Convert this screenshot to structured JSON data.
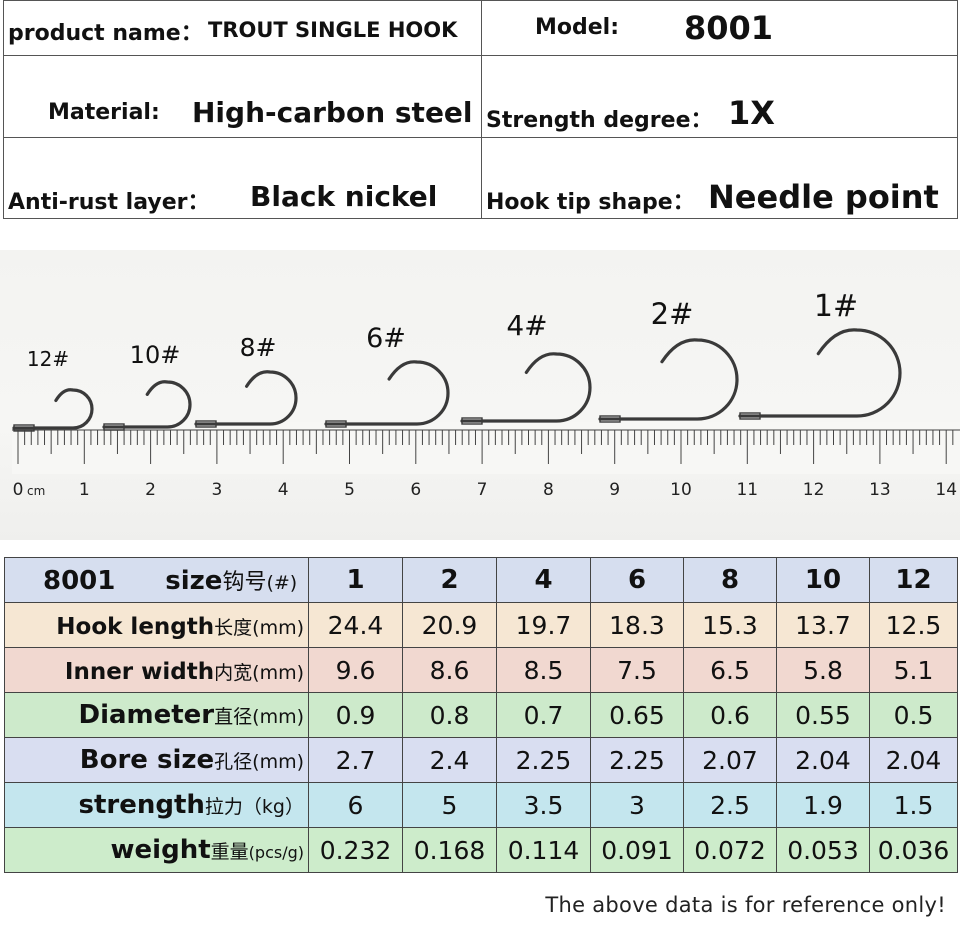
{
  "info": {
    "product_label": "product name：",
    "product_value": "TROUT SINGLE HOOK",
    "model_label": "Model:",
    "model_value": "8001",
    "material_label": "Material:",
    "material_value": "High-carbon steel",
    "strength_label": "Strength degree：",
    "strength_value": "1X",
    "rust_label": "Anti-rust layer：",
    "rust_value": "Black nickel",
    "tip_label": "Hook tip shape：",
    "tip_value": "Needle point"
  },
  "photo": {
    "hook_labels": [
      "12#",
      "10#",
      "8#",
      "6#",
      "4#",
      "2#",
      "1#"
    ],
    "ruler_numbers": [
      "0",
      "1",
      "2",
      "3",
      "4",
      "5",
      "6",
      "7",
      "8",
      "9",
      "10",
      "11",
      "12",
      "13",
      "14"
    ],
    "ruler_unit": "cm"
  },
  "specs": {
    "header": {
      "model": "8001",
      "label_en": "size",
      "label_cn": "钩号",
      "unit": "(#)",
      "sizes": [
        "1",
        "2",
        "4",
        "6",
        "8",
        "10",
        "12"
      ]
    },
    "rows": [
      {
        "en": "Hook length",
        "cn": "长度",
        "unit": "(mm)",
        "values": [
          "24.4",
          "20.9",
          "19.7",
          "18.3",
          "15.3",
          "13.7",
          "12.5"
        ]
      },
      {
        "en": "Inner width",
        "cn": "内宽",
        "unit": "(mm)",
        "values": [
          "9.6",
          "8.6",
          "8.5",
          "7.5",
          "6.5",
          "5.8",
          "5.1"
        ]
      },
      {
        "en": "Diameter",
        "cn": "直径",
        "unit": "(mm)",
        "values": [
          "0.9",
          "0.8",
          "0.7",
          "0.65",
          "0.6",
          "0.55",
          "0.5"
        ]
      },
      {
        "en": "Bore size",
        "cn": "孔径",
        "unit": "(mm)",
        "values": [
          "2.7",
          "2.4",
          "2.25",
          "2.25",
          "2.07",
          "2.04",
          "2.04"
        ]
      },
      {
        "en": "strength",
        "cn": "拉力",
        "unit": "（kg）",
        "values": [
          "6",
          "5",
          "3.5",
          "3",
          "2.5",
          "1.9",
          "1.5"
        ]
      },
      {
        "en": "weight",
        "cn": "重量",
        "unit": "(pcs/g)",
        "values": [
          "0.232",
          "0.168",
          "0.114",
          "0.091",
          "0.072",
          "0.053",
          "0.036"
        ]
      }
    ]
  },
  "footer": "The above data is for reference only!"
}
